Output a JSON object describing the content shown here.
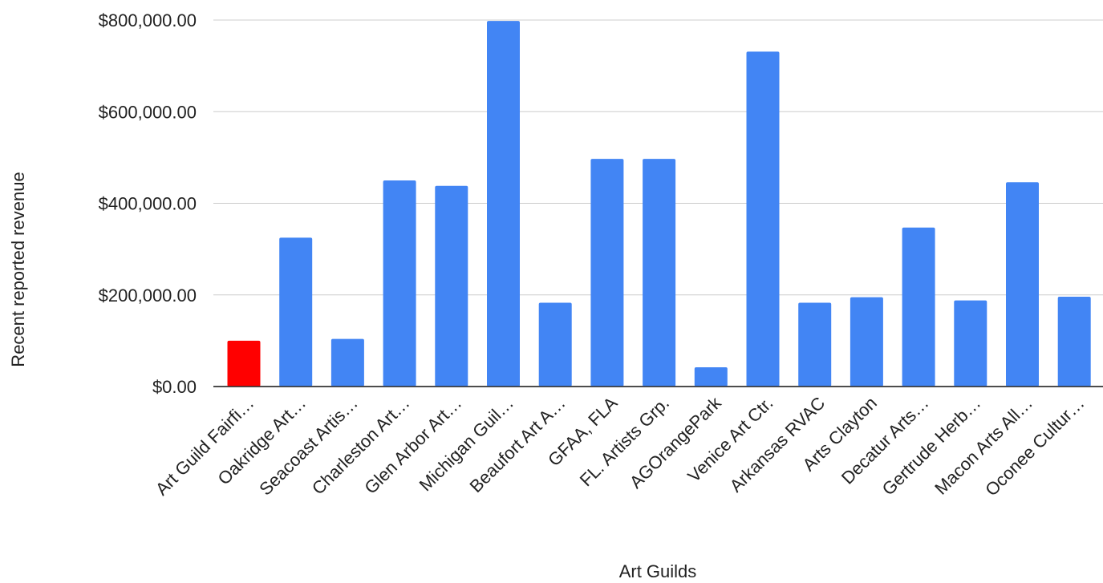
{
  "chart_data": {
    "type": "bar",
    "xlabel": "Art Guilds",
    "ylabel": "Recent reported revenue",
    "ylim": [
      0,
      800000
    ],
    "yticks": [
      0,
      200000,
      400000,
      600000,
      800000
    ],
    "ytick_labels": [
      "$0.00",
      "$200,000.00",
      "$400,000.00",
      "$600,000.00",
      "$800,000.00"
    ],
    "grid": true,
    "categories": [
      "Art Guild Fairfi…",
      "Oakridge Art…",
      "Seacoast Artis…",
      "Charleston Art…",
      "Glen Arbor Art…",
      "Michigan Guil…",
      "Beaufort Art A…",
      "GFAA, FLA",
      "FL. Artists Grp.",
      "AGOrangePark",
      "Venice Art Ctr.",
      "Arkansas RVAC",
      "Arts Clayton",
      "Decatur Arts…",
      "Gertrude Herb…",
      "Macon Arts All…",
      "Oconee Cultur…"
    ],
    "values": [
      100000,
      325000,
      104000,
      450000,
      438000,
      798000,
      183000,
      497000,
      497000,
      42000,
      731000,
      183000,
      195000,
      347000,
      188000,
      446000,
      196000
    ],
    "bar_colors": [
      "#ff0000",
      "#4285f4",
      "#4285f4",
      "#4285f4",
      "#4285f4",
      "#4285f4",
      "#4285f4",
      "#4285f4",
      "#4285f4",
      "#4285f4",
      "#4285f4",
      "#4285f4",
      "#4285f4",
      "#4285f4",
      "#4285f4",
      "#4285f4",
      "#4285f4"
    ]
  },
  "colors": {
    "grid": "#cccccc",
    "baseline": "#333333"
  }
}
